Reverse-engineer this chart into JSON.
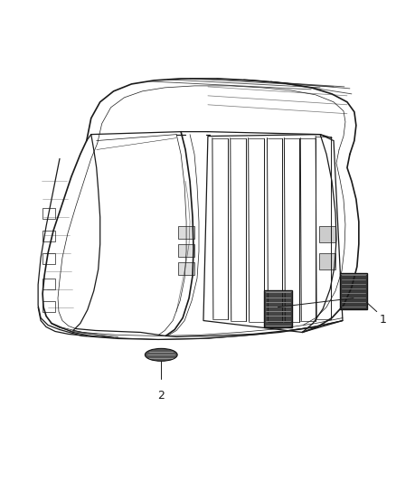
{
  "background_color": "#ffffff",
  "fig_width": 4.38,
  "fig_height": 5.33,
  "dpi": 100,
  "part1_label": "1",
  "part2_label": "2",
  "line_color": "#1a1a1a",
  "body_color": "#1a1a1a",
  "vent_dark": "#3a3a3a",
  "vent_mid": "#555555",
  "vent_light": "#999999",
  "label_fontsize": 9,
  "lw_main": 0.9,
  "lw_thin": 0.5,
  "lw_thick": 1.2
}
